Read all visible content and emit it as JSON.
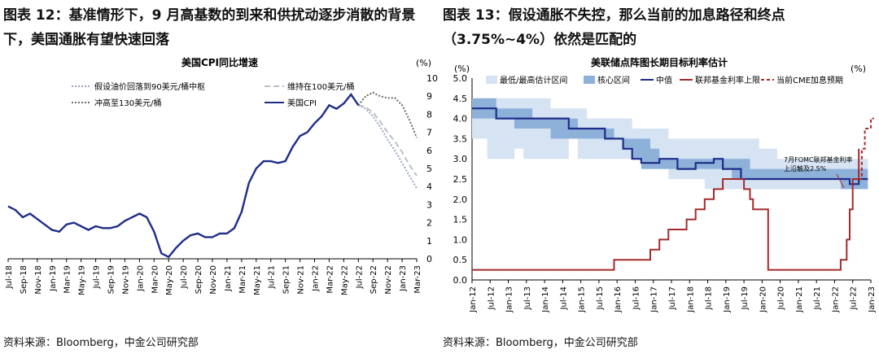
{
  "left": {
    "heading": "图表 12：基准情形下，9 月高基数的到来和供扰动逐步消散的背景下，美国通胀有望快速回落",
    "source": "资料来源：Bloomberg，中金公司研究部",
    "chart_data": {
      "type": "line",
      "title": "美国CPI同比增速",
      "unit": "(%)",
      "ylim": [
        0,
        10
      ],
      "yticks": [
        "0",
        "1",
        "2",
        "3",
        "4",
        "5",
        "6",
        "7",
        "8",
        "9",
        "10"
      ],
      "xticks": [
        "Jul-18",
        "Sep-18",
        "Nov-18",
        "Jan-19",
        "Mar-19",
        "May-19",
        "Jul-19",
        "Sep-19",
        "Nov-19",
        "Jan-20",
        "Mar-20",
        "May-20",
        "Jul-20",
        "Sep-20",
        "Nov-20",
        "Jan-21",
        "Mar-21",
        "May-21",
        "Jul-21",
        "Sep-21",
        "Nov-21",
        "Jan-22",
        "Mar-22",
        "May-22",
        "Jul-22",
        "Sep-22",
        "Nov-22",
        "Jan-23",
        "Mar-23"
      ],
      "legend_position": "top-left",
      "series": [
        {
          "name": "美国CPI",
          "color": "#1f2d8a",
          "style": "solid",
          "x": [
            "2018-07",
            "2018-08",
            "2018-09",
            "2018-10",
            "2018-11",
            "2018-12",
            "2019-01",
            "2019-02",
            "2019-03",
            "2019-04",
            "2019-05",
            "2019-06",
            "2019-07",
            "2019-08",
            "2019-09",
            "2019-10",
            "2019-11",
            "2019-12",
            "2020-01",
            "2020-02",
            "2020-03",
            "2020-04",
            "2020-05",
            "2020-06",
            "2020-07",
            "2020-08",
            "2020-09",
            "2020-10",
            "2020-11",
            "2020-12",
            "2021-01",
            "2021-02",
            "2021-03",
            "2021-04",
            "2021-05",
            "2021-06",
            "2021-07",
            "2021-08",
            "2021-09",
            "2021-10",
            "2021-11",
            "2021-12",
            "2022-01",
            "2022-02",
            "2022-03",
            "2022-04",
            "2022-05",
            "2022-06",
            "2022-07"
          ],
          "values": [
            2.9,
            2.7,
            2.3,
            2.5,
            2.2,
            1.9,
            1.6,
            1.5,
            1.9,
            2.0,
            1.8,
            1.6,
            1.8,
            1.7,
            1.7,
            1.8,
            2.1,
            2.3,
            2.5,
            2.3,
            1.5,
            0.3,
            0.1,
            0.6,
            1.0,
            1.3,
            1.4,
            1.2,
            1.2,
            1.4,
            1.4,
            1.7,
            2.6,
            4.2,
            5.0,
            5.4,
            5.4,
            5.3,
            5.4,
            6.2,
            6.8,
            7.0,
            7.5,
            7.9,
            8.5,
            8.3,
            8.6,
            9.1,
            8.5
          ]
        },
        {
          "name": "假设油价回落到90美元/桶中枢",
          "color": "#9aa8bf",
          "style": "dotted",
          "x": [
            "2022-07",
            "2022-08",
            "2022-09",
            "2022-10",
            "2022-11",
            "2022-12",
            "2023-01",
            "2023-02",
            "2023-03"
          ],
          "values": [
            8.5,
            8.3,
            7.9,
            7.3,
            6.6,
            6.0,
            5.3,
            4.6,
            3.9
          ]
        },
        {
          "name": "维持在100美元/桶",
          "color": "#b9bfc9",
          "style": "dashed",
          "x": [
            "2022-07",
            "2022-08",
            "2022-09",
            "2022-10",
            "2022-11",
            "2022-12",
            "2023-01",
            "2023-02",
            "2023-03"
          ],
          "values": [
            8.5,
            8.4,
            8.1,
            7.6,
            7.0,
            6.5,
            5.9,
            5.2,
            4.6
          ]
        },
        {
          "name": "冲高至130美元/桶",
          "color": "#6b6b6b",
          "style": "dotted",
          "x": [
            "2022-07",
            "2022-08",
            "2022-09",
            "2022-10",
            "2022-11",
            "2022-12",
            "2023-01",
            "2023-02",
            "2023-03"
          ],
          "values": [
            8.5,
            9.0,
            9.2,
            9.0,
            8.9,
            8.9,
            8.5,
            7.7,
            6.7
          ]
        }
      ]
    }
  },
  "right": {
    "heading": "图表 13：假设通胀不失控，那么当前的加息路径和终点（3.75%~4%）依然是匹配的",
    "source": "资料来源：Bloomberg，中金公司研究部",
    "chart_data": {
      "type": "line",
      "title": "美联储点阵图长期目标利率估计",
      "unit_left": "(%)",
      "unit_right": "(%)",
      "ylim": [
        0,
        5
      ],
      "yticks": [
        "0.0",
        "0.5",
        "1.0",
        "1.5",
        "2.0",
        "2.5",
        "3.0",
        "3.5",
        "4.0",
        "4.5",
        "5.0"
      ],
      "xticks": [
        "Jan-12",
        "Jul-12",
        "Jan-13",
        "Jul-13",
        "Jan-14",
        "Jul-14",
        "Jan-15",
        "Jul-15",
        "Jan-16",
        "Jul-16",
        "Jan-17",
        "Jul-17",
        "Jan-18",
        "Jul-18",
        "Jan-19",
        "Jul-19",
        "Jan-20",
        "Jul-20",
        "Jan-21",
        "Jul-21",
        "Jan-22",
        "Jul-22",
        "Jan-23"
      ],
      "legend_position": "top",
      "annotation": "7月FOMC联邦基金利率上沿触及2.5%",
      "series": [
        {
          "name": "最低/最高估计区间",
          "color": "#d6e3f3",
          "type": "band",
          "x": [
            "2012-01",
            "2012-06",
            "2012-09",
            "2012-12",
            "2013-03",
            "2013-06",
            "2013-09",
            "2013-12",
            "2014-03",
            "2014-06",
            "2014-09",
            "2014-12",
            "2015-03",
            "2015-06",
            "2015-09",
            "2015-12",
            "2016-03",
            "2016-06",
            "2016-09",
            "2016-12",
            "2017-03",
            "2017-06",
            "2017-09",
            "2017-12",
            "2018-03",
            "2018-06",
            "2018-09",
            "2018-12",
            "2019-03",
            "2019-06",
            "2019-09",
            "2019-12",
            "2020-03",
            "2020-06",
            "2020-09",
            "2020-12",
            "2021-03",
            "2021-06",
            "2021-09",
            "2021-12",
            "2022-03",
            "2022-06",
            "2022-09"
          ],
          "low": [
            3.5,
            3.0,
            3.0,
            3.0,
            3.25,
            3.0,
            3.0,
            3.0,
            3.0,
            3.0,
            3.5,
            3.0,
            3.0,
            3.0,
            3.0,
            3.0,
            3.0,
            3.0,
            2.75,
            2.75,
            2.75,
            2.5,
            2.5,
            2.5,
            2.5,
            2.25,
            2.25,
            2.25,
            2.25,
            2.25,
            2.25,
            2.25,
            2.25,
            2.25,
            2.25,
            2.25,
            2.25,
            2.25,
            2.25,
            2.25,
            2.25,
            2.25,
            2.25
          ],
          "high": [
            4.5,
            4.5,
            4.5,
            4.5,
            4.5,
            4.5,
            4.5,
            4.5,
            4.25,
            4.25,
            4.25,
            4.25,
            4.0,
            4.0,
            4.0,
            4.0,
            4.0,
            3.75,
            3.75,
            3.75,
            3.75,
            3.5,
            3.5,
            3.5,
            3.5,
            3.5,
            3.5,
            3.5,
            3.5,
            3.5,
            3.5,
            3.25,
            3.25,
            3.0,
            3.0,
            3.0,
            3.0,
            3.0,
            3.0,
            3.0,
            3.0,
            3.0,
            3.0
          ]
        },
        {
          "name": "核心区间",
          "color": "#8eb1da",
          "type": "band",
          "x": [
            "2012-01",
            "2012-06",
            "2012-09",
            "2012-12",
            "2013-03",
            "2013-06",
            "2013-09",
            "2013-12",
            "2014-03",
            "2014-06",
            "2014-09",
            "2014-12",
            "2015-03",
            "2015-06",
            "2015-09",
            "2015-12",
            "2016-03",
            "2016-06",
            "2016-09",
            "2016-12",
            "2017-03",
            "2017-06",
            "2017-09",
            "2017-12",
            "2018-03",
            "2018-06",
            "2018-09",
            "2018-12",
            "2019-03",
            "2019-06",
            "2019-09",
            "2019-12",
            "2020-03",
            "2020-06",
            "2020-09",
            "2020-12",
            "2021-03",
            "2021-06",
            "2021-09",
            "2021-12",
            "2022-03",
            "2022-06",
            "2022-09"
          ],
          "low": [
            4.0,
            4.0,
            4.0,
            4.0,
            3.75,
            3.75,
            3.75,
            3.75,
            3.5,
            3.5,
            3.5,
            3.5,
            3.5,
            3.5,
            3.5,
            3.5,
            3.25,
            3.0,
            2.75,
            2.75,
            2.75,
            2.75,
            2.75,
            2.75,
            2.75,
            2.75,
            2.75,
            2.75,
            2.5,
            2.5,
            2.5,
            2.5,
            2.5,
            2.5,
            2.5,
            2.5,
            2.5,
            2.5,
            2.5,
            2.5,
            2.25,
            2.25,
            2.25
          ],
          "high": [
            4.5,
            4.5,
            4.25,
            4.25,
            4.25,
            4.25,
            4.0,
            4.0,
            4.0,
            4.0,
            4.0,
            3.75,
            3.75,
            3.75,
            3.75,
            3.5,
            3.5,
            3.5,
            3.5,
            3.25,
            3.0,
            3.0,
            3.0,
            3.0,
            3.0,
            3.0,
            3.0,
            3.0,
            3.0,
            3.0,
            2.75,
            2.75,
            2.75,
            2.75,
            2.75,
            2.75,
            2.75,
            2.75,
            2.75,
            2.75,
            2.75,
            2.75,
            2.75
          ]
        },
        {
          "name": "中值",
          "color": "#1f2d8a",
          "type": "step",
          "x": [
            "2012-01",
            "2012-06",
            "2012-09",
            "2013-03",
            "2013-06",
            "2013-09",
            "2013-12",
            "2014-03",
            "2014-06",
            "2014-09",
            "2014-12",
            "2015-03",
            "2015-06",
            "2015-09",
            "2015-12",
            "2016-03",
            "2016-06",
            "2016-09",
            "2016-12",
            "2017-03",
            "2017-06",
            "2017-09",
            "2017-12",
            "2018-03",
            "2018-06",
            "2018-09",
            "2018-12",
            "2019-03",
            "2019-06",
            "2019-09",
            "2019-12",
            "2020-03",
            "2020-06",
            "2020-09",
            "2020-12",
            "2021-03",
            "2021-06",
            "2021-09",
            "2021-12",
            "2022-03",
            "2022-06",
            "2022-09"
          ],
          "values": [
            4.25,
            4.25,
            4.0,
            4.0,
            4.0,
            4.0,
            4.0,
            4.0,
            4.0,
            3.75,
            3.75,
            3.75,
            3.75,
            3.5,
            3.5,
            3.25,
            3.0,
            2.9,
            2.9,
            3.0,
            3.0,
            2.75,
            2.75,
            2.9,
            2.9,
            3.0,
            2.75,
            2.75,
            2.5,
            2.5,
            2.5,
            2.5,
            2.5,
            2.5,
            2.5,
            2.5,
            2.5,
            2.5,
            2.5,
            2.5,
            2.375,
            2.5
          ]
        },
        {
          "name": "联邦基金利率上限",
          "color": "#a52a2a",
          "type": "step",
          "x": [
            "2012-01",
            "2015-12",
            "2016-12",
            "2017-03",
            "2017-06",
            "2017-12",
            "2018-03",
            "2018-06",
            "2018-09",
            "2018-12",
            "2019-07",
            "2019-09",
            "2019-10",
            "2020-03",
            "2020-03b",
            "2022-03",
            "2022-05",
            "2022-06",
            "2022-07",
            "2022-09"
          ],
          "values": [
            0.25,
            0.5,
            0.75,
            1.0,
            1.25,
            1.5,
            1.75,
            2.0,
            2.25,
            2.5,
            2.25,
            2.0,
            1.75,
            1.25,
            0.25,
            0.5,
            1.0,
            1.75,
            2.5,
            3.25
          ]
        },
        {
          "name": "当前CME加息预期",
          "color": "#a52a2a",
          "type": "dashed-step",
          "x": [
            "2022-09",
            "2022-10",
            "2022-11",
            "2022-12",
            "2023-01",
            "2023-02"
          ],
          "values": [
            2.5,
            3.25,
            3.75,
            3.75,
            4.0,
            4.0
          ]
        }
      ]
    }
  }
}
